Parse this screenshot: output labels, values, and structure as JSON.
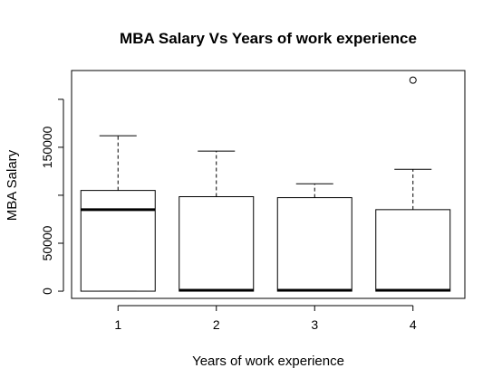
{
  "chart_data": {
    "type": "box",
    "title": "MBA Salary Vs Years of work experience",
    "xlabel": "Years of work experience",
    "ylabel": "MBA Salary",
    "categories": [
      "1",
      "2",
      "3",
      "4"
    ],
    "y_ticks": [
      0,
      50000,
      150000
    ],
    "y_tick_labels": [
      "0",
      "50000",
      "150000"
    ],
    "ylim": [
      -7500,
      230000
    ],
    "grid": false,
    "boxes": [
      {
        "category": "1",
        "min": 0,
        "q1": 0,
        "median": 85000,
        "q3": 105000,
        "max": 162000,
        "outliers": []
      },
      {
        "category": "2",
        "min": 0,
        "q1": 0,
        "median": 1000,
        "q3": 98500,
        "max": 146000,
        "outliers": []
      },
      {
        "category": "3",
        "min": 0,
        "q1": 0,
        "median": 1000,
        "q3": 97500,
        "max": 112000,
        "outliers": []
      },
      {
        "category": "4",
        "min": 0,
        "q1": 0,
        "median": 1000,
        "q3": 85000,
        "max": 127000,
        "outliers": [
          220000
        ]
      }
    ]
  }
}
